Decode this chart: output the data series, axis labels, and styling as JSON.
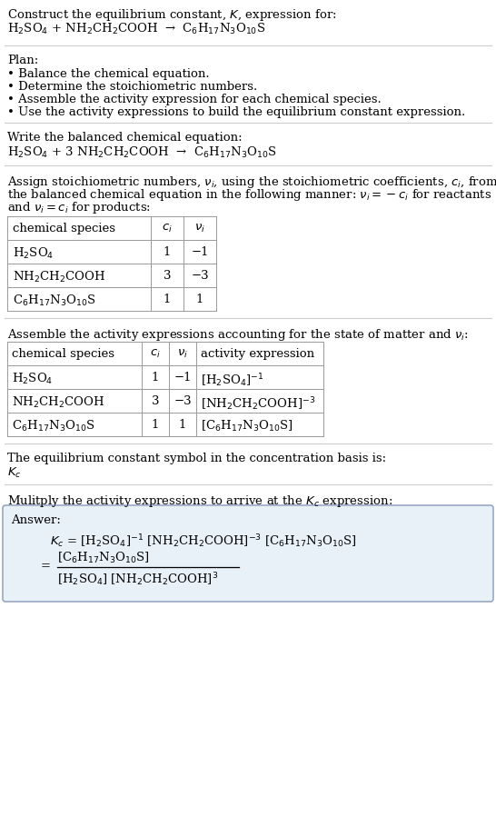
{
  "bg_color": "#ffffff",
  "answer_bg_color": "#e8f0f8",
  "answer_border_color": "#8899bb",
  "divider_color": "#cccccc",
  "table_line_color": "#999999",
  "title_line1": "Construct the equilibrium constant, $K$, expression for:",
  "title_line2_parts": [
    "H$_2$SO$_4$ + NH$_2$CH$_2$COOH  →  C$_6$H$_{17}$N$_3$O$_{10}$S"
  ],
  "plan_header": "Plan:",
  "plan_bullets": [
    "• Balance the chemical equation.",
    "• Determine the stoichiometric numbers.",
    "• Assemble the activity expression for each chemical species.",
    "• Use the activity expressions to build the equilibrium constant expression."
  ],
  "balanced_header": "Write the balanced chemical equation:",
  "balanced_eq": "H$_2$SO$_4$ + 3 NH$_2$CH$_2$COOH  →  C$_6$H$_{17}$N$_3$O$_{10}$S",
  "stoich_header_parts": [
    "Assign stoichiometric numbers, $\\nu_i$, using the stoichiometric coefficients, $c_i$, from",
    "the balanced chemical equation in the following manner: $\\nu_i = -c_i$ for reactants",
    "and $\\nu_i = c_i$ for products:"
  ],
  "table1_col_headers": [
    "chemical species",
    "$c_i$",
    "$\\nu_i$"
  ],
  "table1_rows": [
    [
      "H$_2$SO$_4$",
      "1",
      "−1"
    ],
    [
      "NH$_2$CH$_2$COOH",
      "3",
      "−3"
    ],
    [
      "C$_6$H$_{17}$N$_3$O$_{10}$S",
      "1",
      "1"
    ]
  ],
  "activity_header": "Assemble the activity expressions accounting for the state of matter and $\\nu_i$:",
  "table2_col_headers": [
    "chemical species",
    "$c_i$",
    "$\\nu_i$",
    "activity expression"
  ],
  "table2_rows": [
    [
      "H$_2$SO$_4$",
      "1",
      "−1",
      "[H$_2$SO$_4$]$^{-1}$"
    ],
    [
      "NH$_2$CH$_2$COOH",
      "3",
      "−3",
      "[NH$_2$CH$_2$COOH]$^{-3}$"
    ],
    [
      "C$_6$H$_{17}$N$_3$O$_{10}$S",
      "1",
      "1",
      "[C$_6$H$_{17}$N$_3$O$_{10}$S]"
    ]
  ],
  "kc_header": "The equilibrium constant symbol in the concentration basis is:",
  "kc_symbol": "$K_c$",
  "multiply_header": "Mulitply the activity expressions to arrive at the $K_c$ expression:",
  "answer_label": "Answer:",
  "answer_kc_line": "$K_c$ = [H$_2$SO$_4$]$^{-1}$ [NH$_2$CH$_2$COOH]$^{-3}$ [C$_6$H$_{17}$N$_3$O$_{10}$S]",
  "answer_eq_sign": "=",
  "answer_numerator": "[C$_6$H$_{17}$N$_3$O$_{10}$S]",
  "answer_denominator": "[H$_2$SO$_4$] [NH$_2$CH$_2$COOH]$^3$",
  "fs": 9.5,
  "fs_table": 9.5
}
